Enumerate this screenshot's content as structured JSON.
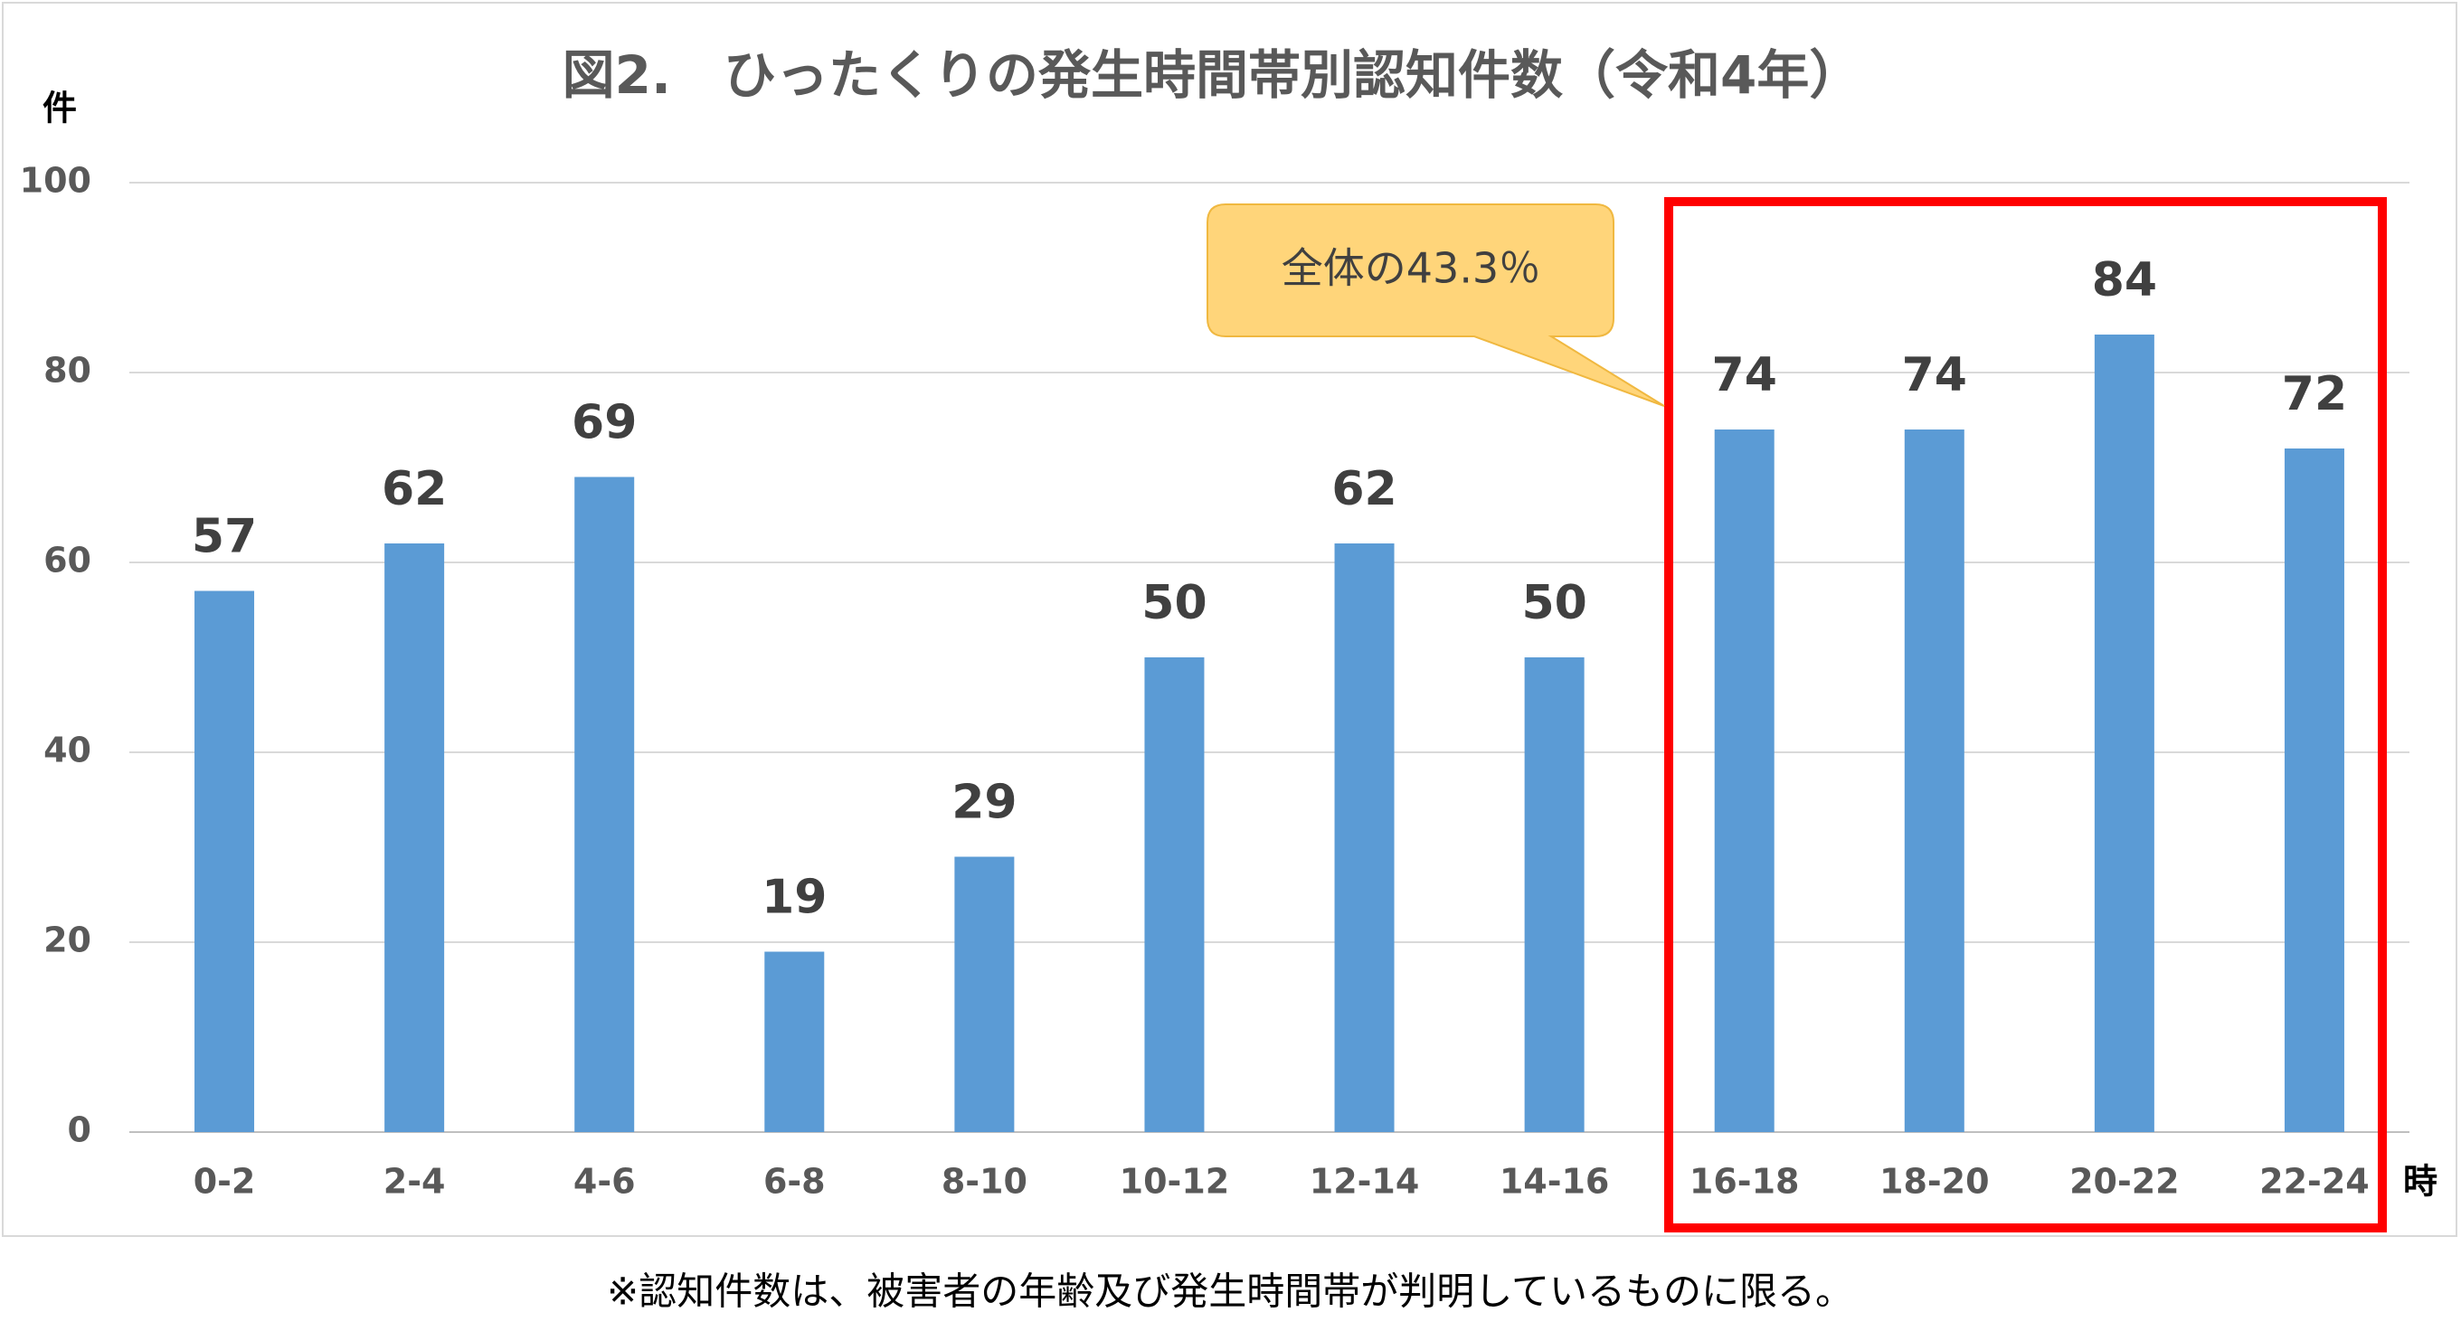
{
  "chart_data": {
    "type": "bar",
    "title": "図2.　ひったくりの発生時間帯別認知件数（令和4年）",
    "y_unit": "件",
    "x_unit": "時",
    "categories": [
      "0-2",
      "2-4",
      "4-6",
      "6-8",
      "8-10",
      "10-12",
      "12-14",
      "14-16",
      "16-18",
      "18-20",
      "20-22",
      "22-24"
    ],
    "values": [
      57,
      62,
      69,
      19,
      29,
      50,
      62,
      50,
      74,
      74,
      84,
      72
    ],
    "color": "#5b9bd5",
    "ylim": [
      0,
      100
    ],
    "yticks": [
      0,
      20,
      40,
      60,
      80,
      100
    ],
    "grid": true,
    "annotation": "全体の43.3％",
    "footnote": "※認知件数は、被害者の年齢及び発生時間帯が判明しているものに限る。"
  }
}
